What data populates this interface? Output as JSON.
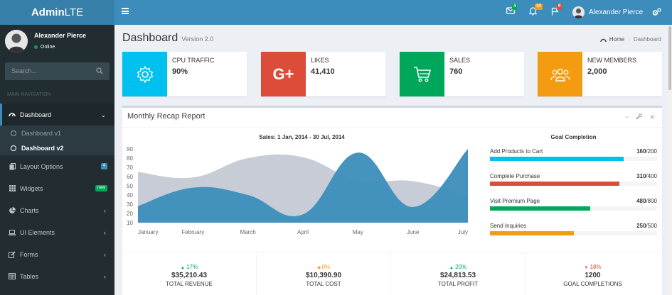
{
  "brand": {
    "bold": "Admin",
    "light": "LTE"
  },
  "topbar": {
    "badges": {
      "messages": "4",
      "notifications": "10",
      "tasks": "9"
    },
    "user_name": "Alexander Pierce"
  },
  "sidebar": {
    "user_name": "Alexander Pierce",
    "status": "Online",
    "search_placeholder": "Search...",
    "nav_header": "MAIN NAVIGATION",
    "items": [
      {
        "label": "Dashboard",
        "icon": "dashboard-icon"
      },
      {
        "label": "Layout Options",
        "icon": "files-icon",
        "badge": "4"
      },
      {
        "label": "Widgets",
        "icon": "th-icon",
        "badge": "new"
      },
      {
        "label": "Charts",
        "icon": "pie-chart-icon"
      },
      {
        "label": "UI Elements",
        "icon": "laptop-icon"
      },
      {
        "label": "Forms",
        "icon": "edit-icon"
      },
      {
        "label": "Tables",
        "icon": "table-icon"
      }
    ],
    "sub_items": [
      "Dashboard v1",
      "Dashboard v2"
    ]
  },
  "page": {
    "title": "Dashboard",
    "version": "Version 2.0"
  },
  "breadcrumb": {
    "home": "Home",
    "current": "Dashboard"
  },
  "info_boxes": [
    {
      "label": "CPU TRAFFIC",
      "value": "90%",
      "color": "#00c0ef",
      "icon": "gear-icon"
    },
    {
      "label": "LIKES",
      "value": "41,410",
      "color": "#dd4b39",
      "icon": "google-plus-icon"
    },
    {
      "label": "SALES",
      "value": "760",
      "color": "#00a65a",
      "icon": "shopping-cart-icon"
    },
    {
      "label": "NEW MEMBERS",
      "value": "2,000",
      "color": "#f39c12",
      "icon": "users-icon"
    }
  ],
  "report": {
    "title": "Monthly Recap Report",
    "chart_title": "Sales: 1 Jan, 2014 - 30 Jul, 2014",
    "goal_title": "Goal Completion",
    "goals": [
      {
        "label": "Add Products to Cart",
        "value": "160",
        "total": "/200",
        "fraction": 0.8,
        "color": "#00c0ef"
      },
      {
        "label": "Complete Purchase",
        "value": "310",
        "total": "/400",
        "fraction": 0.775,
        "color": "#dd4b39"
      },
      {
        "label": "Visit Premium Page",
        "value": "480",
        "total": "/800",
        "fraction": 0.6,
        "color": "#00a65a"
      },
      {
        "label": "Send Inquiries",
        "value": "250",
        "total": "/500",
        "fraction": 0.5,
        "color": "#f39c12"
      }
    ],
    "stats": [
      {
        "pct": "17%",
        "dir": "up",
        "color": "#00a65a",
        "amount": "$35,210.43",
        "label": "TOTAL REVENUE"
      },
      {
        "pct": "0%",
        "dir": "left",
        "color": "#f39c12",
        "amount": "$10,390.90",
        "label": "TOTAL COST"
      },
      {
        "pct": "20%",
        "dir": "up",
        "color": "#00a65a",
        "amount": "$24,813.53",
        "label": "TOTAL PROFIT"
      },
      {
        "pct": "18%",
        "dir": "down",
        "color": "#dd4b39",
        "amount": "1200",
        "label": "GOAL COMPLETIONS"
      }
    ]
  },
  "chart_data": {
    "type": "area",
    "title": "Sales: 1 Jan, 2014 - 30 Jul, 2014",
    "categories": [
      "January",
      "February",
      "March",
      "April",
      "May",
      "June",
      "July"
    ],
    "ylim": [
      10,
      90
    ],
    "yticks": [
      10,
      20,
      30,
      40,
      50,
      60,
      70,
      80,
      90
    ],
    "series": [
      {
        "color": "#c1c7d1",
        "values": [
          65,
          59,
          80,
          81,
          56,
          55,
          40
        ]
      },
      {
        "color": "#3c8dbc",
        "values": [
          28,
          48,
          40,
          19,
          86,
          27,
          90
        ]
      }
    ],
    "grid": false
  }
}
